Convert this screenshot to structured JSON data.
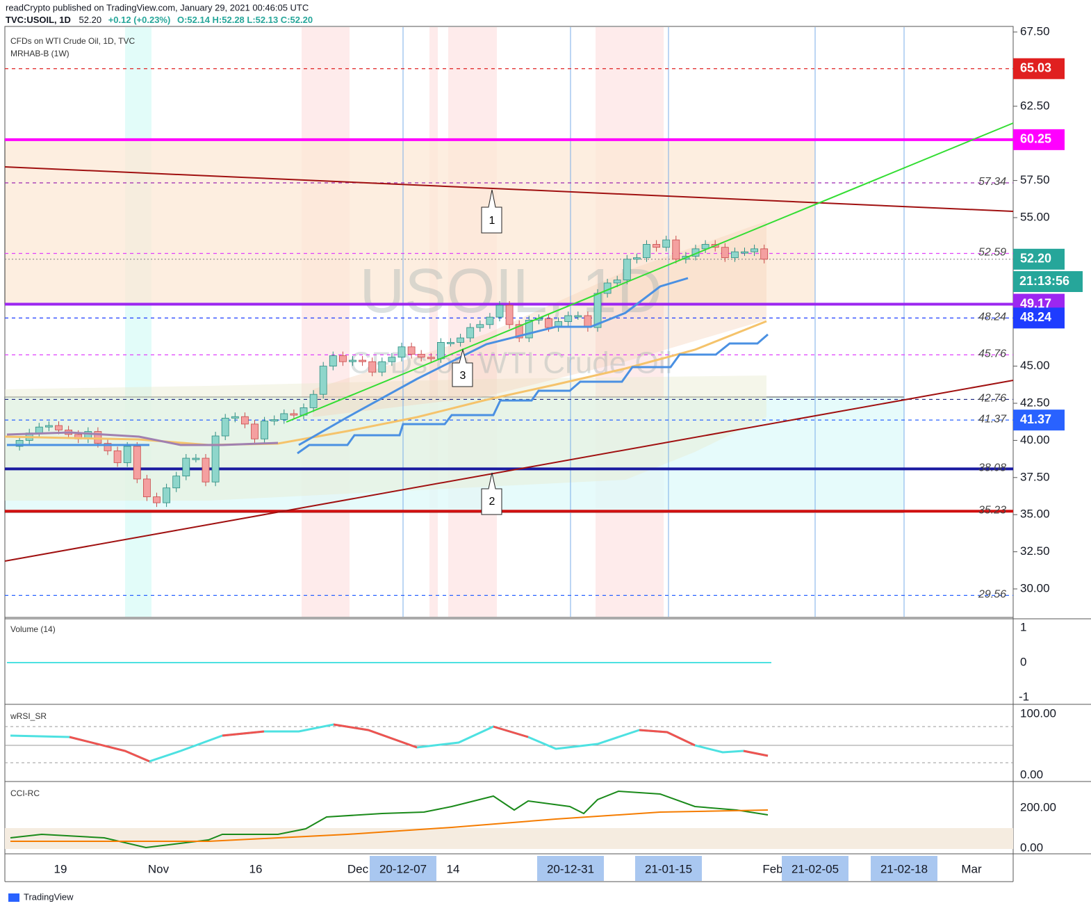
{
  "header": {
    "line1": "readCrypto published on TradingView.com, January 29, 2021 00:46:05 UTC",
    "symbol": "TVC:USOIL, 1D",
    "last": "52.20",
    "change": "+0.12 (+0.23%)",
    "ohlc": "O:52.14 H:52.28 L:52.13 C:52.20"
  },
  "main": {
    "description": "CFDs on WTI Crude Oil, 1D, TVC",
    "indicator": "MRHAB-B (1W)",
    "watermark_symbol": "USOIL, 1D",
    "watermark_desc": "CFDs on WTI Crude Oil",
    "ylim": [
      30,
      67.5
    ],
    "yticks": [
      {
        "value": 67.5,
        "label": "67.50"
      },
      {
        "value": 62.5,
        "label": "62.50"
      },
      {
        "value": 57.5,
        "label": "57.50"
      },
      {
        "value": 55,
        "label": "55.00"
      },
      {
        "value": 45,
        "label": "45.00"
      },
      {
        "value": 42.5,
        "label": "42.50"
      },
      {
        "value": 40,
        "label": "40.00"
      },
      {
        "value": 37.5,
        "label": "37.50"
      },
      {
        "value": 35,
        "label": "35.00"
      },
      {
        "value": 32.5,
        "label": "32.50"
      },
      {
        "value": 30,
        "label": "30.00"
      }
    ],
    "levels": [
      {
        "value": 65.03,
        "color": "#e02020",
        "tag": true
      },
      {
        "value": 60.25,
        "color": "#ff00ff",
        "tag": true
      },
      {
        "value": 57.34,
        "color": "#9c27b0",
        "tag": false
      },
      {
        "value": 52.59,
        "color": "#e040fb",
        "tag": false
      },
      {
        "value": {
          "value": 52.2,
          "label": "52.20"
        },
        "color": "#26a69a",
        "tag": true
      },
      {
        "value": 49.17,
        "color": "#9c27f0",
        "tag": true
      },
      {
        "value": 48.24,
        "color": "#1e3cff",
        "tag": true,
        "italic": true
      },
      {
        "value": 45.76,
        "color": "#e040fb",
        "tag": false
      },
      {
        "value": 42.76,
        "color": "#1a237e",
        "tag": false
      },
      {
        "value": 41.37,
        "color": "#2962ff",
        "tag": true,
        "italic": true
      },
      {
        "value": 38.08,
        "color": "#1a1aa0",
        "tag": false
      },
      {
        "value": 35.23,
        "color": "#d01010",
        "tag": false
      },
      {
        "value": 29.56,
        "color": "#2962ff",
        "tag": false
      }
    ],
    "countdown": "21:13:56",
    "callouts": [
      "1",
      "2",
      "3"
    ],
    "closes": [
      39.6,
      40.0,
      40.5,
      40.9,
      41.0,
      40.7,
      40.4,
      40.1,
      40.6,
      39.8,
      39.3,
      38.5,
      39.6,
      37.4,
      36.2,
      35.8,
      36.8,
      37.6,
      38.8,
      38.8,
      37.2,
      40.3,
      41.5,
      41.6,
      41.1,
      40.1,
      41.3,
      41.4,
      41.8,
      41.7,
      42.2,
      43.1,
      45.0,
      45.7,
      45.3,
      45.4,
      45.3,
      44.6,
      45.3,
      45.6,
      46.3,
      45.8,
      45.6,
      45.5,
      46.6,
      46.6,
      46.9,
      47.6,
      47.8,
      48.3,
      49.1,
      47.8,
      46.9,
      48.1,
      48.2,
      47.6,
      48.0,
      48.4,
      48.4,
      47.6,
      49.9,
      50.6,
      50.8,
      52.2,
      52.3,
      53.2,
      53.0,
      53.5,
      52.2,
      52.4,
      52.9,
      53.2,
      53.0,
      52.3,
      52.7,
      52.7,
      52.9,
      52.2
    ]
  },
  "volume": {
    "title": "Volume (14)",
    "ticks": [
      "1",
      "0",
      "-1"
    ]
  },
  "rsi": {
    "title": "wRSI_SR",
    "ticks": [
      "100.00",
      "0.00"
    ]
  },
  "cci": {
    "title": "CCI-RC",
    "ticks": [
      "200.00",
      "0.00"
    ]
  },
  "time_axis": {
    "labels": [
      "19",
      "Nov",
      "16",
      "Dec",
      "14",
      "Feb",
      "Mar"
    ],
    "highlighted": [
      "20-12-07",
      "20-12-31",
      "21-01-15",
      "21-02-05",
      "21-02-18"
    ]
  },
  "footer": "TradingView"
}
